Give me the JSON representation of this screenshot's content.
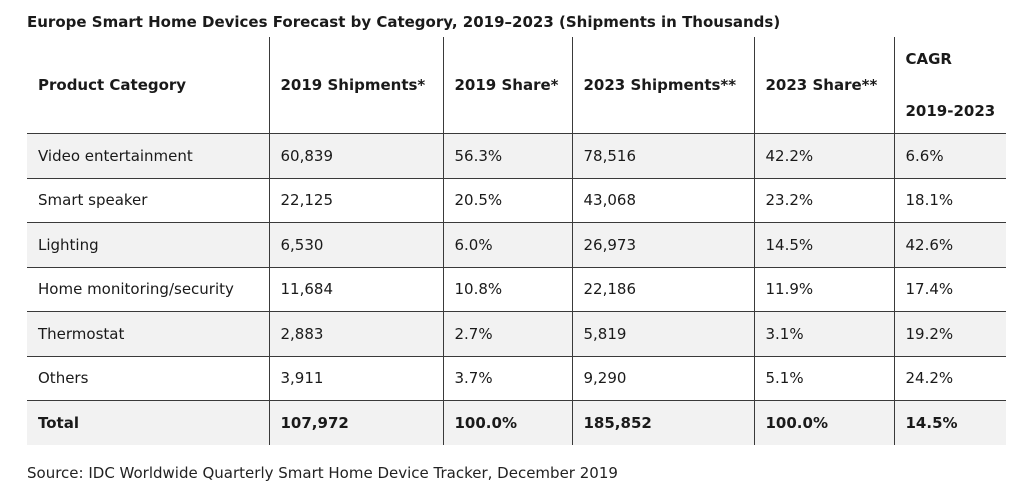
{
  "title": "Europe Smart Home Devices Forecast by Category, 2019–2023 (Shipments in Thousands)",
  "headers": {
    "category": "Product Category",
    "shipments_2019": "2019 Shipments*",
    "share_2019": "2019 Share*",
    "shipments_2023": "2023 Shipments**",
    "share_2023": "2023 Share**",
    "cagr_line1": "CAGR",
    "cagr_line2": "2019-2023"
  },
  "rows": [
    {
      "category": "Video entertainment",
      "shipments_2019": "60,839",
      "share_2019": "56.3%",
      "shipments_2023": "78,516",
      "share_2023": "42.2%",
      "cagr": "6.6%"
    },
    {
      "category": "Smart speaker",
      "shipments_2019": "22,125",
      "share_2019": "20.5%",
      "shipments_2023": "43,068",
      "share_2023": "23.2%",
      "cagr": "18.1%"
    },
    {
      "category": "Lighting",
      "shipments_2019": "6,530",
      "share_2019": "6.0%",
      "shipments_2023": "26,973",
      "share_2023": "14.5%",
      "cagr": "42.6%"
    },
    {
      "category": "Home monitoring/security",
      "shipments_2019": "11,684",
      "share_2019": "10.8%",
      "shipments_2023": "22,186",
      "share_2023": "11.9%",
      "cagr": "17.4%"
    },
    {
      "category": "Thermostat",
      "shipments_2019": "2,883",
      "share_2019": "2.7%",
      "shipments_2023": "5,819",
      "share_2023": "3.1%",
      "cagr": "19.2%"
    },
    {
      "category": "Others",
      "shipments_2019": "3,911",
      "share_2019": "3.7%",
      "shipments_2023": "9,290",
      "share_2023": "5.1%",
      "cagr": "24.2%"
    }
  ],
  "total": {
    "category": "Total",
    "shipments_2019": "107,972",
    "share_2019": "100.0%",
    "shipments_2023": "185,852",
    "share_2023": "100.0%",
    "cagr": "14.5%"
  },
  "source": "Source: IDC Worldwide Quarterly Smart Home Device Tracker, December 2019",
  "colors": {
    "shaded_row": "#f2f2f2",
    "rule": "#3a3a3a"
  }
}
